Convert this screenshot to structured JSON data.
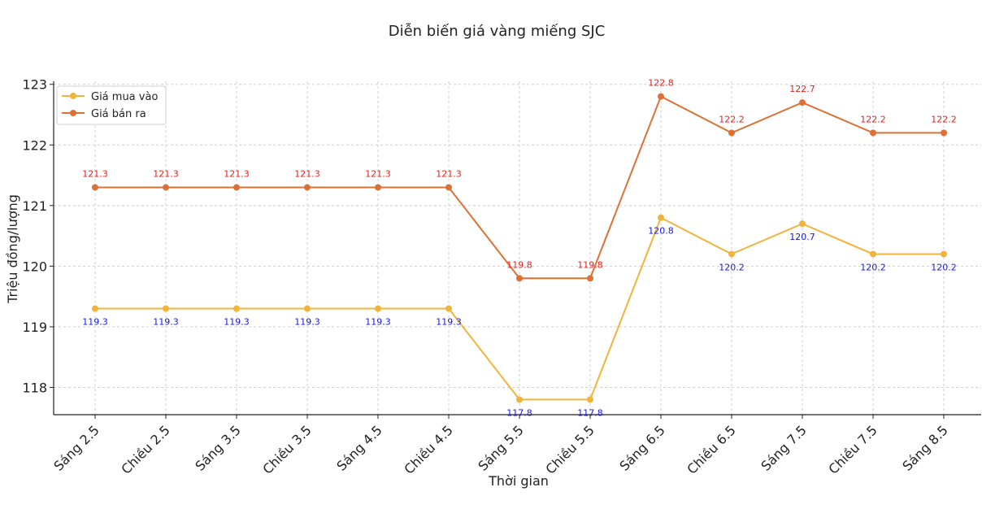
{
  "chart_data": {
    "type": "line",
    "title": "Diễn biến giá vàng miếng SJC",
    "xlabel": "Thời gian",
    "ylabel": "Triệu đồng/lượng",
    "categories": [
      "Sáng 2.5",
      "Chiều 2.5",
      "Sáng 3.5",
      "Chiều 3.5",
      "Sáng 4.5",
      "Chiều 4.5",
      "Sáng 5.5",
      "Chiều 5.5",
      "Sáng 6.5",
      "Chiều 6.5",
      "Sáng 7.5",
      "Chiều 7.5",
      "Sáng 8.5"
    ],
    "yticks": [
      "118",
      "119",
      "120",
      "121",
      "122",
      "123"
    ],
    "ylim": [
      117.55,
      123.05
    ],
    "grid": true,
    "legend_position": "top-left",
    "series": [
      {
        "name": "Giá mua vào",
        "color": "#f0b43c",
        "label_color": "#1a1adb",
        "label_position": "below",
        "values": [
          119.3,
          119.3,
          119.3,
          119.3,
          119.3,
          119.3,
          117.8,
          117.8,
          120.8,
          120.2,
          120.7,
          120.2,
          120.2
        ]
      },
      {
        "name": "Giá bán ra",
        "color": "#dd7035",
        "label_color": "#e0231e",
        "label_position": "above",
        "values": [
          121.3,
          121.3,
          121.3,
          121.3,
          121.3,
          121.3,
          119.8,
          119.8,
          122.8,
          122.2,
          122.7,
          122.2,
          122.2
        ]
      }
    ]
  }
}
